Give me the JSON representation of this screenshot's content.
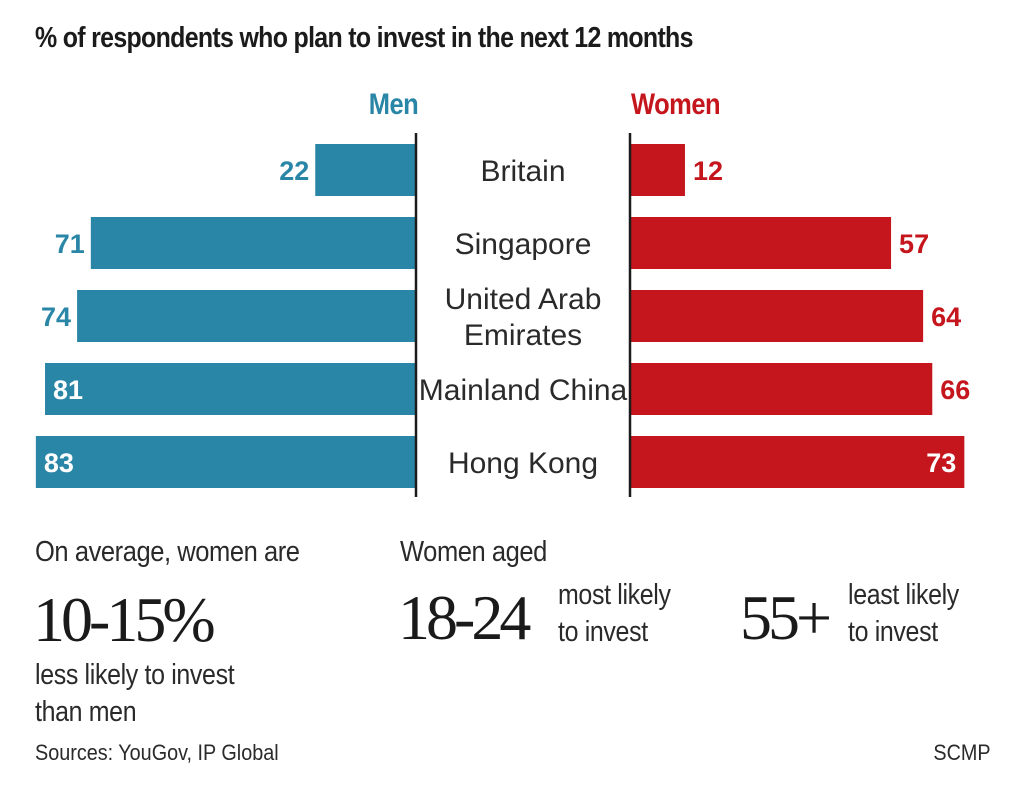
{
  "colors": {
    "men": "#2a86a6",
    "women": "#c4161c",
    "axis": "#1c1c1c"
  },
  "chart_data": {
    "type": "bar",
    "orientation": "horizontal-diverging",
    "title": "% of respondents who plan to invest in the next 12 months",
    "categories": [
      "Britain",
      "Singapore",
      "United Arab Emirates",
      "Mainland China",
      "Hong Kong"
    ],
    "category_lines": [
      [
        "Britain"
      ],
      [
        "Singapore"
      ],
      [
        "United Arab",
        "Emirates"
      ],
      [
        "Mainland China"
      ],
      [
        "Hong Kong"
      ]
    ],
    "series": [
      {
        "name": "Men",
        "side": "left",
        "values": [
          22,
          71,
          74,
          81,
          83
        ]
      },
      {
        "name": "Women",
        "side": "right",
        "values": [
          12,
          57,
          64,
          66,
          73
        ]
      }
    ],
    "xlim": [
      0,
      100
    ],
    "grid": false,
    "legend": "top"
  },
  "stats": {
    "average": {
      "intro": "On average, women are",
      "figure": "10-15%",
      "line1": "less likely to invest",
      "line2": "than men"
    },
    "aged_intro": "Women aged",
    "young": {
      "figure": "18-24",
      "line1": "most likely",
      "line2": "to invest"
    },
    "old": {
      "figure": "55+",
      "line1": "least likely",
      "line2": "to invest"
    }
  },
  "footer": {
    "source": "Sources: YouGov, IP Global",
    "credit": "SCMP"
  }
}
